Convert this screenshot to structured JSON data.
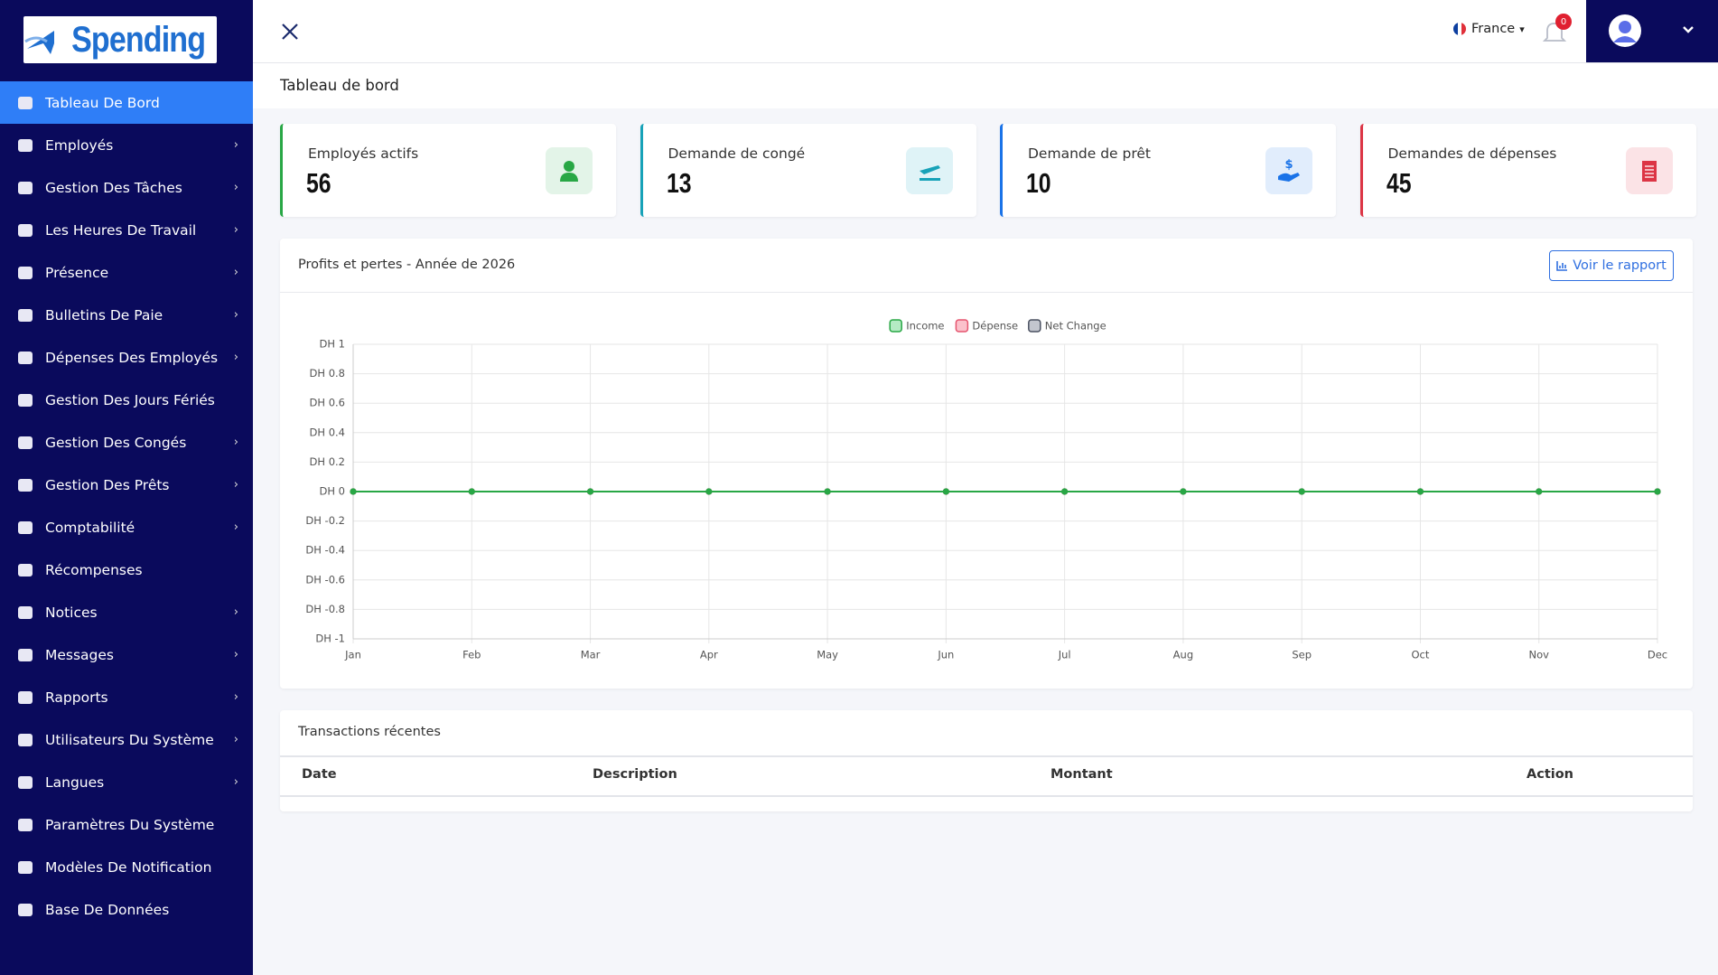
{
  "logo": "Spending",
  "sidebar": [
    "Tableau De Bord",
    "Employés",
    "Gestion Des Tâches",
    "Les Heures De Travail",
    "Présence",
    "Bulletins De Paie",
    "Dépenses Des Employés",
    "Gestion Des Jours Fériés",
    "Gestion Des Congés",
    "Gestion Des Prêts",
    "Comptabilité",
    "Récompenses",
    "Notices",
    "Messages",
    "Rapports",
    "Utilisateurs Du Système",
    "Langues",
    "Paramètres Du Système",
    "Modèles De Notification",
    "Base De Données"
  ],
  "header": {
    "language": "France",
    "notification_count": 0
  },
  "page_title": "Tableau de bord",
  "cards": [
    {
      "label": "Employés actifs",
      "value": 56
    },
    {
      "label": "Demande de congé",
      "value": 13
    },
    {
      "label": "Demande de prêt",
      "value": 10
    },
    {
      "label": "Demandes de dépenses",
      "value": 45
    }
  ],
  "report_button": "Voir le rapport",
  "chart_data": {
    "type": "line",
    "title": "Profits et pertes - Année de 2026",
    "categories": [
      "Jan",
      "Feb",
      "Mar",
      "Apr",
      "May",
      "Jun",
      "Jul",
      "Aug",
      "Sep",
      "Oct",
      "Nov",
      "Dec"
    ],
    "series": [
      {
        "name": "Income",
        "color": "#28a745",
        "values": [
          0,
          0,
          0,
          0,
          0,
          0,
          0,
          0,
          0,
          0,
          0,
          0
        ]
      },
      {
        "name": "Dépense",
        "color": "#e5556f",
        "values": [
          0,
          0,
          0,
          0,
          0,
          0,
          0,
          0,
          0,
          0,
          0,
          0
        ]
      },
      {
        "name": "Net Change",
        "color": "#4a5060",
        "values": [
          0,
          0,
          0,
          0,
          0,
          0,
          0,
          0,
          0,
          0,
          0,
          0
        ]
      }
    ],
    "ylim": [
      -1,
      1
    ],
    "yticks": [
      {
        "value": 1,
        "label": "DH 1"
      },
      {
        "value": 0.8,
        "label": "DH 0.8"
      },
      {
        "value": 0.6,
        "label": "DH 0.6"
      },
      {
        "value": 0.4,
        "label": "DH 0.4"
      },
      {
        "value": 0.2,
        "label": "DH 0.2"
      },
      {
        "value": 0,
        "label": "DH 0"
      },
      {
        "value": -0.2,
        "label": "DH -0.2"
      },
      {
        "value": -0.4,
        "label": "DH -0.4"
      },
      {
        "value": -0.6,
        "label": "DH -0.6"
      },
      {
        "value": -0.8,
        "label": "DH -0.8"
      },
      {
        "value": -1,
        "label": "DH -1"
      }
    ],
    "grid": true,
    "legend": "top"
  },
  "transactions": {
    "title": "Transactions récentes",
    "columns": [
      "Date",
      "Description",
      "Montant",
      "Action"
    ]
  }
}
